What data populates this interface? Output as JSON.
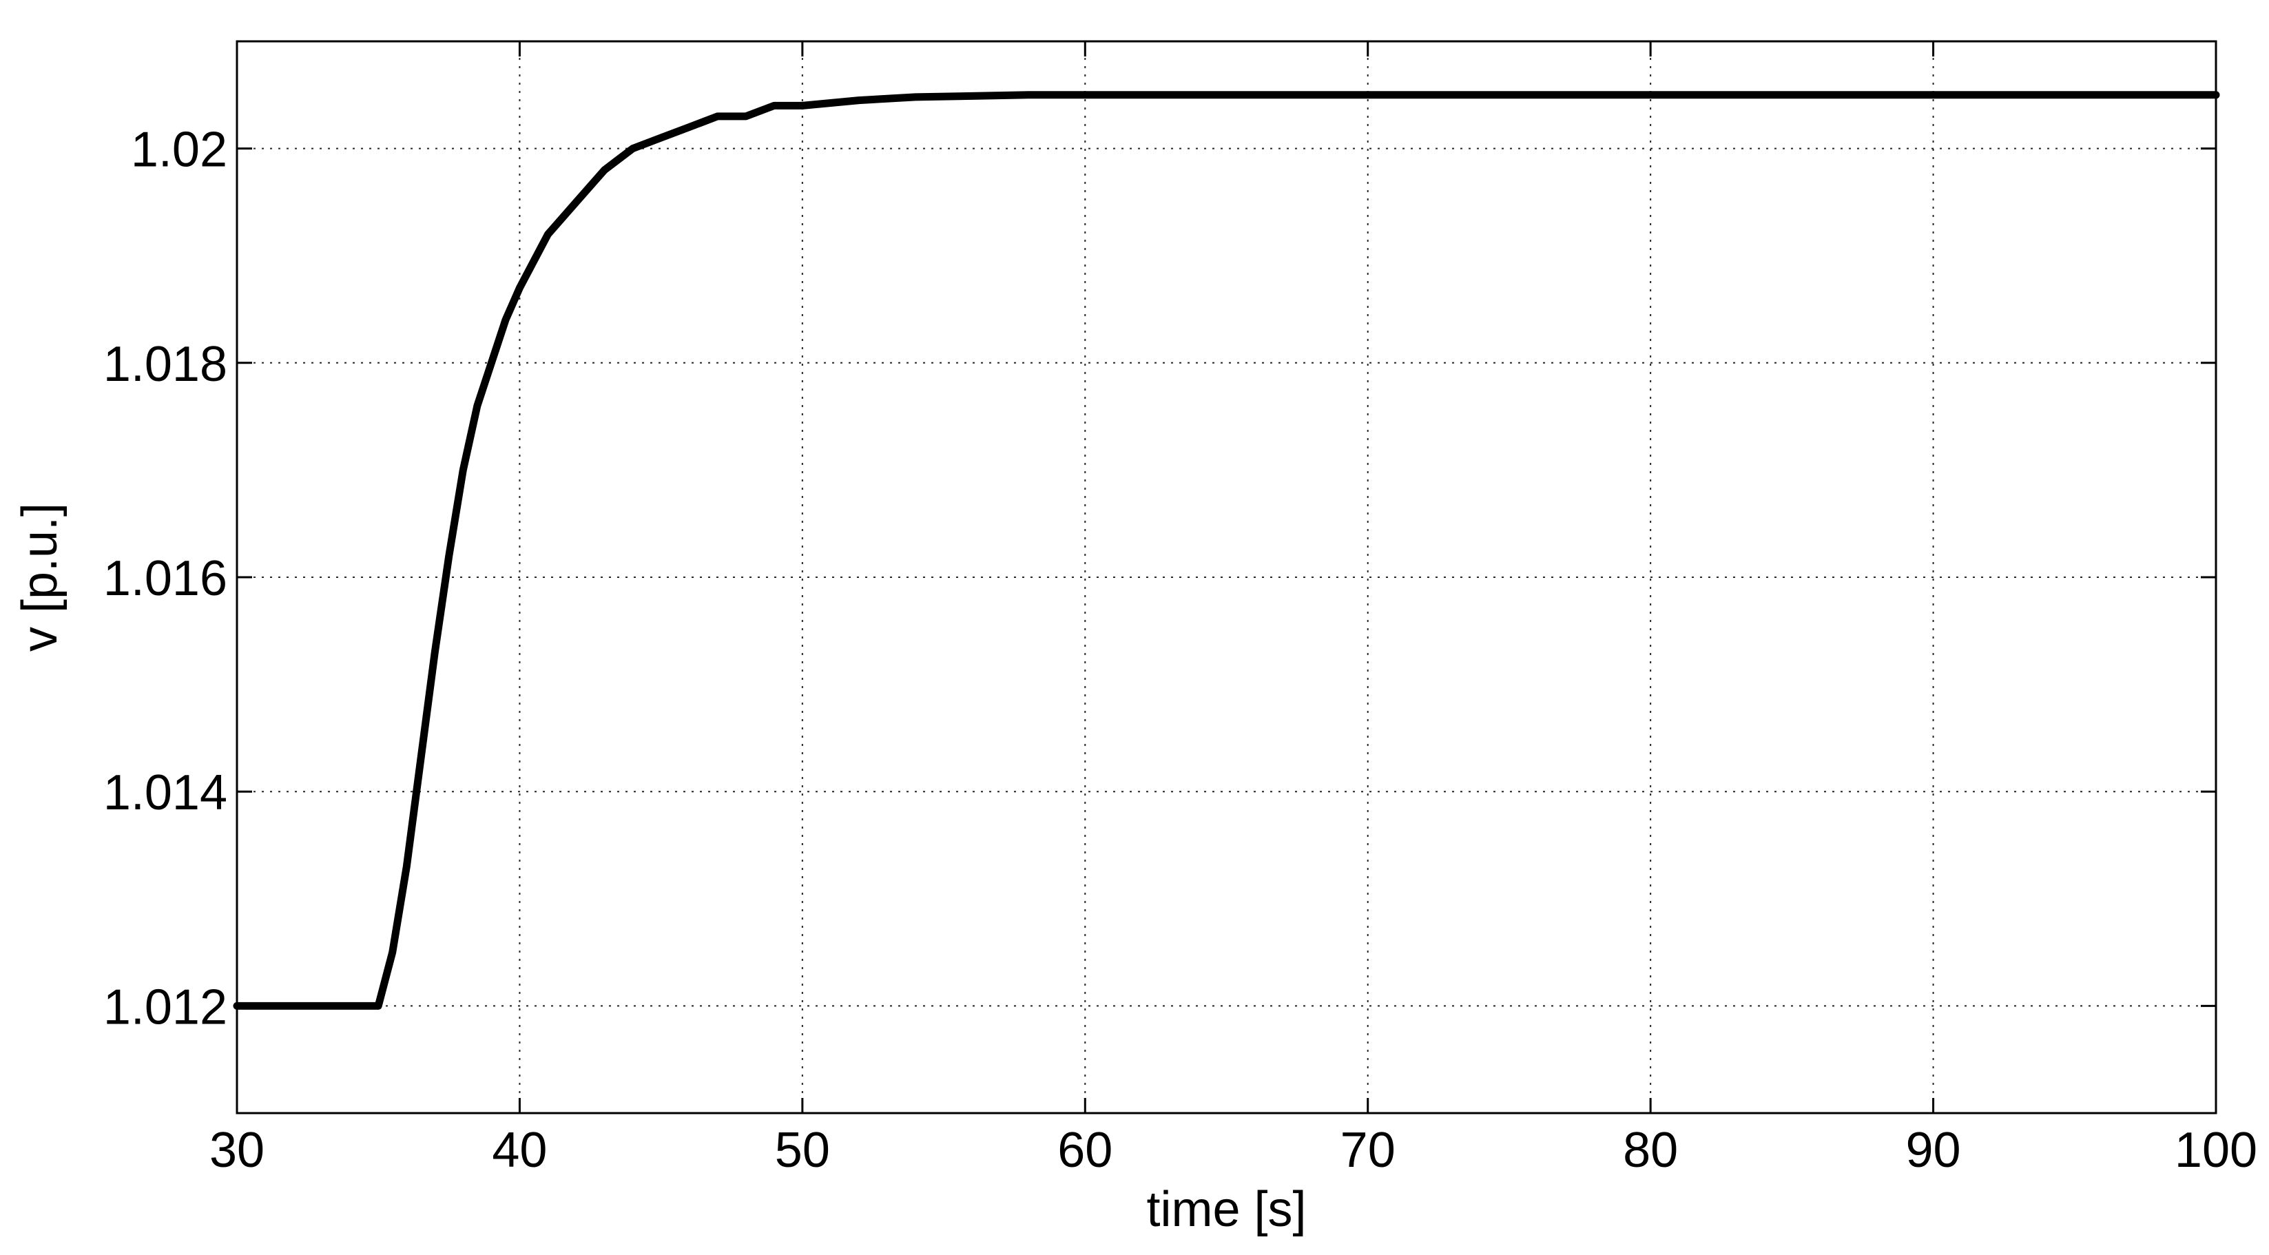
{
  "chart_data": {
    "type": "line",
    "title": "",
    "xlabel": "time [s]",
    "ylabel": "v [p.u.]",
    "xlim": [
      30,
      100
    ],
    "ylim": [
      1.011,
      1.021
    ],
    "xticks": [
      30,
      40,
      50,
      60,
      70,
      80,
      90,
      100
    ],
    "yticks": [
      1.012,
      1.014,
      1.016,
      1.018,
      1.02
    ],
    "xtick_labels": [
      "30",
      "40",
      "50",
      "60",
      "70",
      "80",
      "90",
      "100"
    ],
    "ytick_labels": [
      "1.012",
      "1.014",
      "1.016",
      "1.018",
      "1.02"
    ],
    "grid": true,
    "legend": "none",
    "series": [
      {
        "color": "#000000",
        "x": [
          30,
          31,
          32,
          33,
          34,
          35,
          35.5,
          36,
          36.5,
          37,
          37.5,
          38,
          38.5,
          39,
          39.5,
          40,
          41,
          42,
          43,
          44,
          45,
          46,
          47,
          48,
          49,
          50,
          52,
          54,
          56,
          58,
          60,
          70,
          80,
          90,
          100
        ],
        "y": [
          1.012,
          1.012,
          1.012,
          1.012,
          1.012,
          1.012,
          1.0125,
          1.0133,
          1.0143,
          1.0153,
          1.0162,
          1.017,
          1.0176,
          1.018,
          1.0184,
          1.0187,
          1.0192,
          1.0195,
          1.0198,
          1.02,
          1.0201,
          1.0202,
          1.0203,
          1.0203,
          1.0204,
          1.0204,
          1.02045,
          1.02048,
          1.02049,
          1.0205,
          1.0205,
          1.0205,
          1.0205,
          1.0205,
          1.0205
        ]
      }
    ]
  }
}
